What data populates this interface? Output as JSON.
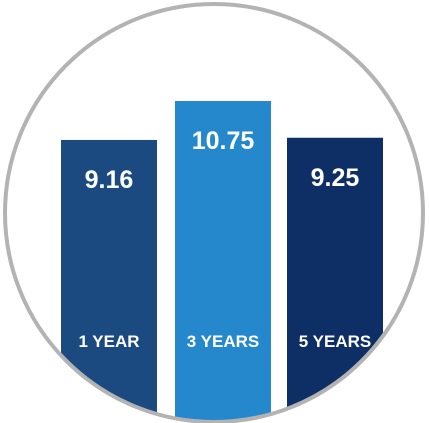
{
  "chart_data": {
    "type": "bar",
    "categories": [
      "1 YEAR",
      "3 YEARS",
      "5 YEARS"
    ],
    "values": [
      9.16,
      10.75,
      9.25
    ],
    "value_labels": [
      "9.16",
      "10.75",
      "9.25"
    ],
    "title": "",
    "xlabel": "",
    "ylabel": "",
    "grid": false,
    "legend": "none",
    "colors": [
      "#1a4a80",
      "#2688cc",
      "#0e2e66"
    ],
    "frame_color": "#b3b3b3",
    "label_color": "#ffffff"
  }
}
